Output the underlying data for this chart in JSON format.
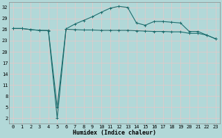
{
  "xlabel": "Humidex (Indice chaleur)",
  "background_color": "#b2d8d8",
  "grid_color": "#e8c8c8",
  "line_color": "#1a6b6b",
  "x_ticks": [
    0,
    1,
    2,
    3,
    4,
    5,
    6,
    7,
    8,
    9,
    10,
    11,
    12,
    13,
    14,
    15,
    16,
    17,
    18,
    19,
    20,
    21,
    22,
    23
  ],
  "y_ticks": [
    2,
    5,
    8,
    11,
    14,
    17,
    20,
    23,
    26,
    29,
    32
  ],
  "ylim": [
    0.5,
    33.5
  ],
  "xlim": [
    -0.5,
    23.5
  ],
  "series1": {
    "x": [
      0,
      1,
      2,
      3,
      4,
      5,
      6,
      7,
      8,
      9,
      10,
      11,
      12,
      13,
      14,
      15,
      16,
      17,
      18,
      19,
      20,
      21,
      22,
      23
    ],
    "y": [
      26.3,
      26.3,
      26.0,
      25.8,
      25.7,
      2.0,
      26.1,
      26.0,
      25.9,
      25.9,
      25.8,
      25.8,
      25.8,
      25.8,
      25.7,
      25.6,
      25.5,
      25.5,
      25.4,
      25.4,
      25.0,
      25.0,
      24.5,
      23.5
    ],
    "marker": "+"
  },
  "series2": {
    "x": [
      0,
      1,
      2,
      3,
      4,
      5,
      6,
      7,
      8,
      9,
      10,
      11,
      12,
      13,
      14,
      15,
      16,
      17,
      18,
      19,
      20,
      21,
      22,
      23
    ],
    "y": [
      26.3,
      26.3,
      26.0,
      25.8,
      25.8,
      5.0,
      26.2,
      27.5,
      28.5,
      29.5,
      30.7,
      31.8,
      32.3,
      32.0,
      27.8,
      27.2,
      28.2,
      28.2,
      28.0,
      27.8,
      25.5,
      25.5,
      24.5,
      23.5
    ],
    "marker": "+"
  },
  "tick_fontsize": 5.0,
  "xlabel_fontsize": 6.0,
  "linewidth": 0.8,
  "markersize": 2.5,
  "markeredgewidth": 0.7
}
